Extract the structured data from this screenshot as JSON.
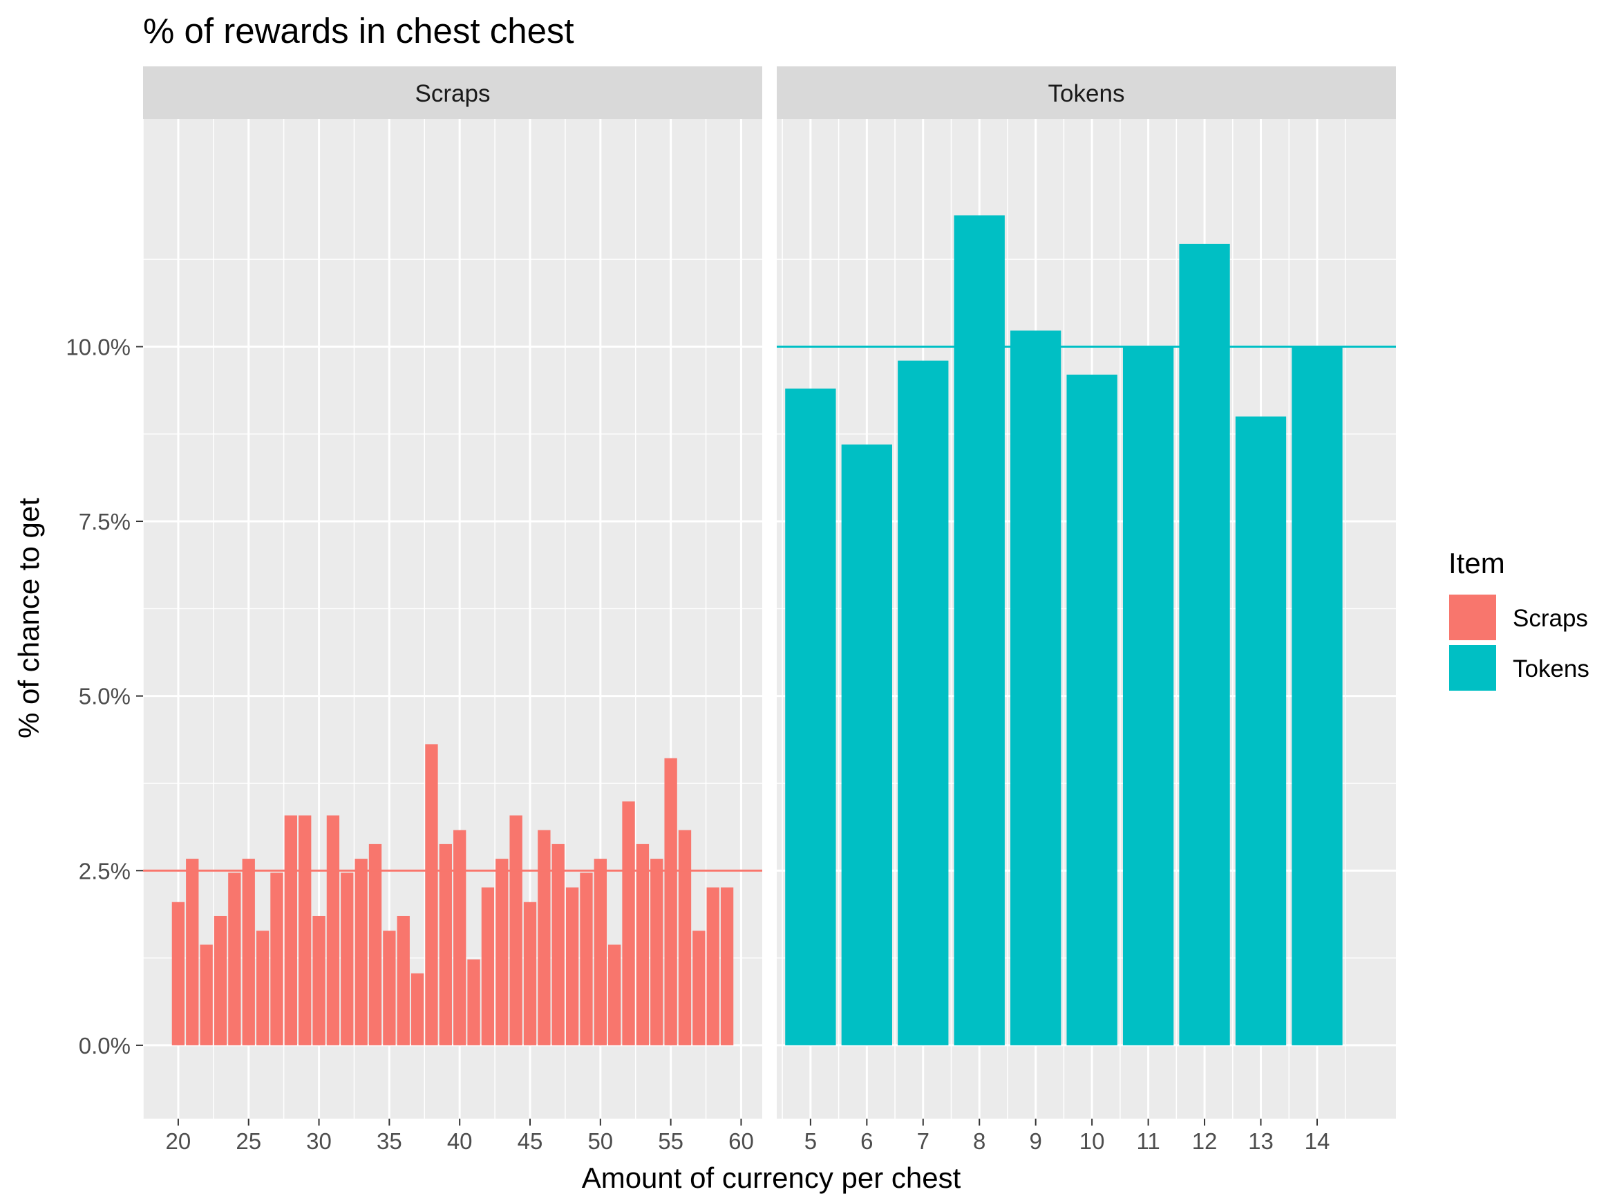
{
  "chart_data": {
    "type": "bar",
    "title": "% of rewards in chest chest",
    "xlabel": "Amount of currency per chest",
    "ylabel": "% of chance to get",
    "ylim": [
      -0.0105,
      0.1326
    ],
    "y_ticks": [
      0,
      0.025,
      0.05,
      0.075,
      0.1
    ],
    "y_tick_labels": [
      "0.0%",
      "2.5%",
      "5.0%",
      "7.5%",
      "10.0%"
    ],
    "grid": true,
    "legend": {
      "title": "Item",
      "placement": "right",
      "entries": [
        {
          "label": "Scraps",
          "color": "#F8766D"
        },
        {
          "label": "Tokens",
          "color": "#00BFC4"
        }
      ]
    },
    "panels": [
      {
        "name": "Scraps",
        "color": "#F8766D",
        "xlim": [
          17.5,
          61.5
        ],
        "x_ticks": [
          20,
          25,
          30,
          35,
          40,
          45,
          50,
          55,
          60
        ],
        "x_tick_labels": [
          "20",
          "25",
          "30",
          "35",
          "40",
          "45",
          "50",
          "55",
          "60"
        ],
        "bar_width": 0.9,
        "reference_line": 0.025,
        "x": [
          20,
          21,
          22,
          23,
          24,
          25,
          26,
          27,
          28,
          29,
          30,
          31,
          32,
          33,
          34,
          35,
          36,
          37,
          38,
          39,
          40,
          41,
          42,
          43,
          44,
          45,
          46,
          47,
          48,
          49,
          50,
          51,
          52,
          53,
          54,
          55,
          56,
          57,
          58,
          59
        ],
        "values": [
          0.0205,
          0.0267,
          0.0144,
          0.0185,
          0.0247,
          0.0267,
          0.0164,
          0.0247,
          0.0329,
          0.0329,
          0.0185,
          0.0329,
          0.0247,
          0.0267,
          0.0288,
          0.0164,
          0.0185,
          0.0103,
          0.0431,
          0.0288,
          0.0308,
          0.0123,
          0.0226,
          0.0267,
          0.0329,
          0.0205,
          0.0308,
          0.0288,
          0.0226,
          0.0247,
          0.0267,
          0.0144,
          0.0349,
          0.0288,
          0.0267,
          0.0411,
          0.0308,
          0.0164,
          0.0226,
          0.0226
        ]
      },
      {
        "name": "Tokens",
        "color": "#00BFC4",
        "xlim": [
          4.4,
          15.4
        ],
        "x_ticks": [
          5,
          6,
          7,
          8,
          9,
          10,
          11,
          12,
          13,
          14
        ],
        "x_tick_labels": [
          "5",
          "6",
          "7",
          "8",
          "9",
          "10",
          "11",
          "12",
          "13",
          "14"
        ],
        "bar_width": 0.9,
        "reference_line": 0.1,
        "x": [
          5,
          6,
          7,
          8,
          9,
          10,
          11,
          12,
          13,
          14
        ],
        "values": [
          0.094,
          0.086,
          0.098,
          0.1188,
          0.1023,
          0.096,
          0.1,
          0.1147,
          0.09,
          0.1
        ]
      }
    ]
  }
}
